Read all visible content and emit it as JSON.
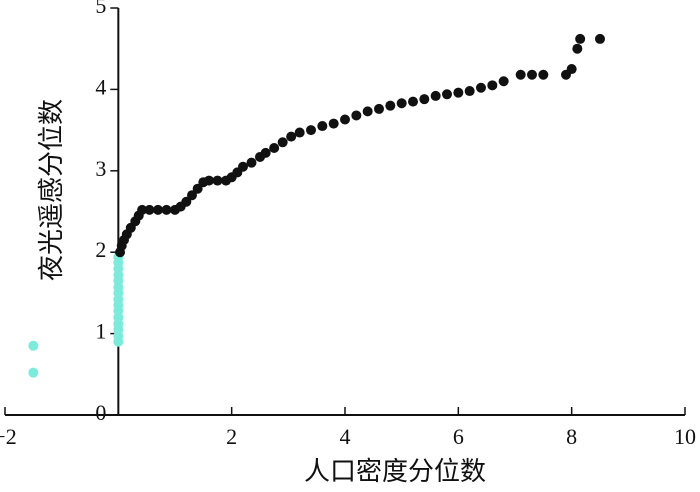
{
  "chart_data": {
    "type": "scatter",
    "x_label": "人口密度分位数",
    "y_label": "夜光遥感分位数",
    "xlim": [
      -2,
      10
    ],
    "ylim": [
      0,
      5
    ],
    "xticks": [
      {
        "value": -2,
        "label": "−2"
      },
      2,
      4,
      6,
      8,
      10
    ],
    "yticks": [
      0,
      1,
      2,
      3,
      4,
      5
    ],
    "series": [
      {
        "color": "#7eeadb",
        "x": [
          -1.5,
          -1.5,
          0.0,
          0.0,
          0.0,
          0.0,
          0.0,
          0.0,
          0.0,
          0.0,
          0.0,
          0.0,
          0.0,
          0.0,
          0.0,
          0.0,
          0.0
        ],
        "values": [
          0.85,
          0.52,
          0.9,
          0.97,
          1.05,
          1.12,
          1.2,
          1.28,
          1.35,
          1.42,
          1.5,
          1.57,
          1.65,
          1.72,
          1.8,
          1.87,
          1.94
        ]
      },
      {
        "color": "#111111",
        "x": [
          0.03,
          0.06,
          0.1,
          0.15,
          0.22,
          0.3,
          0.36,
          0.42,
          0.55,
          0.7,
          0.85,
          1.0,
          1.1,
          1.2,
          1.3,
          1.4,
          1.5,
          1.6,
          1.75,
          1.9,
          2.0,
          2.1,
          2.2,
          2.35,
          2.5,
          2.6,
          2.75,
          2.9,
          3.05,
          3.2,
          3.4,
          3.6,
          3.8,
          4.0,
          4.2,
          4.4,
          4.6,
          4.8,
          5.0,
          5.2,
          5.4,
          5.6,
          5.8,
          6.0,
          6.2,
          6.4,
          6.6,
          6.8,
          7.1,
          7.3,
          7.5,
          7.9,
          8.0,
          8.1,
          8.15,
          8.5
        ],
        "values": [
          2.0,
          2.08,
          2.15,
          2.22,
          2.3,
          2.38,
          2.45,
          2.52,
          2.52,
          2.52,
          2.52,
          2.52,
          2.56,
          2.62,
          2.7,
          2.78,
          2.86,
          2.88,
          2.88,
          2.88,
          2.92,
          2.98,
          3.05,
          3.1,
          3.17,
          3.22,
          3.28,
          3.35,
          3.42,
          3.47,
          3.5,
          3.55,
          3.58,
          3.63,
          3.68,
          3.73,
          3.76,
          3.8,
          3.83,
          3.85,
          3.88,
          3.92,
          3.94,
          3.96,
          3.98,
          4.02,
          4.05,
          4.1,
          4.18,
          4.18,
          4.18,
          4.18,
          4.25,
          4.5,
          4.62,
          4.62
        ]
      }
    ]
  }
}
